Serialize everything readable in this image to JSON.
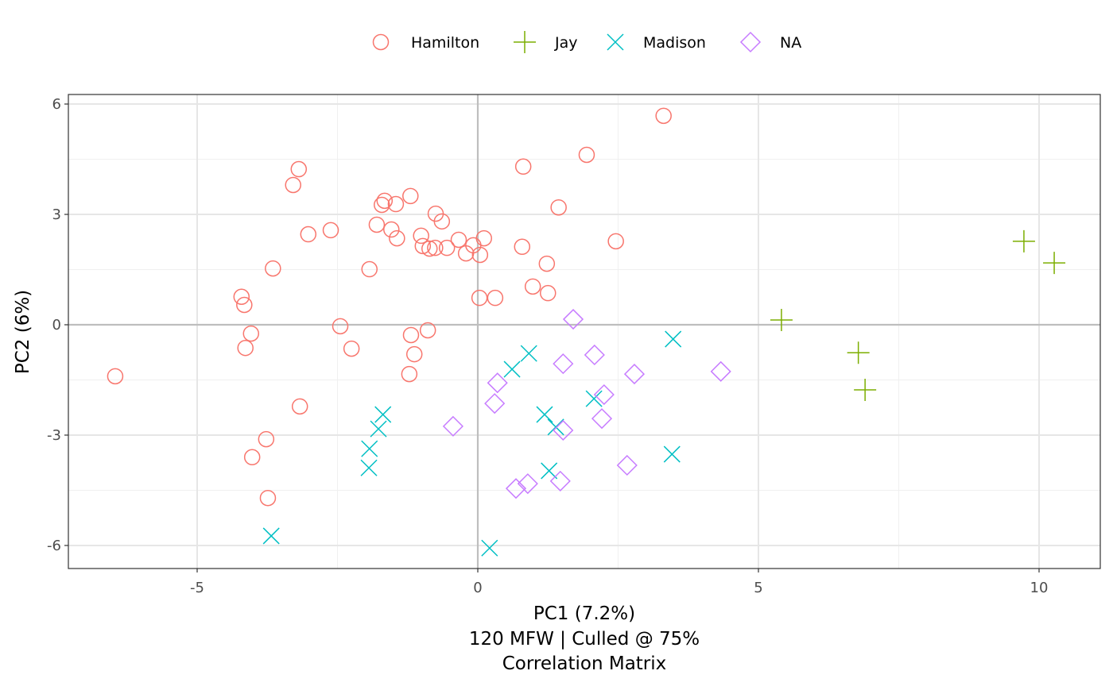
{
  "chart_data": {
    "type": "scatter",
    "xlabel": "PC1 (7.2%)",
    "xlabel_lines": [
      "PC1 (7.2%)",
      "120 MFW | Culled @ 75%",
      "Correlation Matrix"
    ],
    "ylabel": "PC2 (6%)",
    "xlim": [
      -7.3,
      11.1
    ],
    "ylim": [
      -6.6,
      6.3
    ],
    "x_ticks": [
      -5,
      0,
      5,
      10
    ],
    "x_tick_labels": [
      "-5",
      "0",
      "5",
      "10"
    ],
    "y_ticks": [
      -6,
      -3,
      0,
      3,
      6
    ],
    "y_tick_labels": [
      "-6",
      "-3",
      "0",
      "3",
      "6"
    ],
    "grid": true,
    "zero_lines": true,
    "legend_position": "top",
    "series": [
      {
        "name": "Hamilton",
        "color": "#F8766D",
        "shape": "circle",
        "points": [
          [
            3.31,
            5.68
          ],
          [
            1.94,
            4.62
          ],
          [
            -3.19,
            4.23
          ],
          [
            0.81,
            4.3
          ],
          [
            -3.29,
            3.8
          ],
          [
            -1.2,
            3.5
          ],
          [
            -1.66,
            3.37
          ],
          [
            -1.71,
            3.26
          ],
          [
            -1.46,
            3.28
          ],
          [
            1.44,
            3.19
          ],
          [
            -0.75,
            3.02
          ],
          [
            -0.64,
            2.81
          ],
          [
            -2.62,
            2.57
          ],
          [
            -3.02,
            2.46
          ],
          [
            -1.8,
            2.72
          ],
          [
            -1.54,
            2.59
          ],
          [
            -1.44,
            2.35
          ],
          [
            -1.01,
            2.42
          ],
          [
            -0.34,
            2.31
          ],
          [
            0.11,
            2.35
          ],
          [
            -0.98,
            2.14
          ],
          [
            -0.86,
            2.07
          ],
          [
            -0.76,
            2.09
          ],
          [
            -0.55,
            2.09
          ],
          [
            -0.21,
            1.94
          ],
          [
            -0.08,
            2.16
          ],
          [
            0.04,
            1.9
          ],
          [
            2.46,
            2.27
          ],
          [
            0.79,
            2.12
          ],
          [
            -3.65,
            1.53
          ],
          [
            -1.93,
            1.51
          ],
          [
            1.23,
            1.66
          ],
          [
            0.98,
            1.04
          ],
          [
            1.25,
            0.86
          ],
          [
            0.03,
            0.73
          ],
          [
            0.31,
            0.73
          ],
          [
            -4.21,
            0.76
          ],
          [
            -4.16,
            0.54
          ],
          [
            -4.04,
            -0.24
          ],
          [
            -2.45,
            -0.04
          ],
          [
            -1.19,
            -0.28
          ],
          [
            -0.89,
            -0.15
          ],
          [
            -4.14,
            -0.63
          ],
          [
            -2.25,
            -0.65
          ],
          [
            -1.13,
            -0.8
          ],
          [
            -1.22,
            -1.34
          ],
          [
            -6.46,
            -1.4
          ],
          [
            -3.17,
            -2.22
          ],
          [
            -3.77,
            -3.11
          ],
          [
            -4.02,
            -3.6
          ],
          [
            -3.74,
            -4.71
          ]
        ]
      },
      {
        "name": "Jay",
        "color": "#7CAE00",
        "shape": "plus",
        "points": [
          [
            9.73,
            2.27
          ],
          [
            10.27,
            1.68
          ],
          [
            5.41,
            0.13
          ],
          [
            6.78,
            -0.76
          ],
          [
            6.9,
            -1.77
          ]
        ]
      },
      {
        "name": "Madison",
        "color": "#00BFC4",
        "shape": "cross",
        "points": [
          [
            3.48,
            -0.39
          ],
          [
            0.91,
            -0.78
          ],
          [
            0.61,
            -1.21
          ],
          [
            2.07,
            -2.01
          ],
          [
            -1.69,
            -2.44
          ],
          [
            1.19,
            -2.44
          ],
          [
            1.39,
            -2.78
          ],
          [
            -1.77,
            -2.83
          ],
          [
            -1.93,
            -3.37
          ],
          [
            3.46,
            -3.52
          ],
          [
            -1.94,
            -3.89
          ],
          [
            1.27,
            -3.97
          ],
          [
            -3.68,
            -5.74
          ],
          [
            0.21,
            -6.07
          ]
        ]
      },
      {
        "name": "NA",
        "color": "#C77CFF",
        "shape": "diamond",
        "points": [
          [
            1.7,
            0.15
          ],
          [
            2.08,
            -0.82
          ],
          [
            1.52,
            -1.06
          ],
          [
            2.79,
            -1.34
          ],
          [
            4.33,
            -1.27
          ],
          [
            0.35,
            -1.58
          ],
          [
            2.25,
            -1.9
          ],
          [
            0.3,
            -2.14
          ],
          [
            2.21,
            -2.55
          ],
          [
            -0.44,
            -2.76
          ],
          [
            1.52,
            -2.87
          ],
          [
            2.66,
            -3.82
          ],
          [
            1.47,
            -4.25
          ],
          [
            0.89,
            -4.32
          ],
          [
            0.68,
            -4.45
          ]
        ]
      }
    ]
  }
}
